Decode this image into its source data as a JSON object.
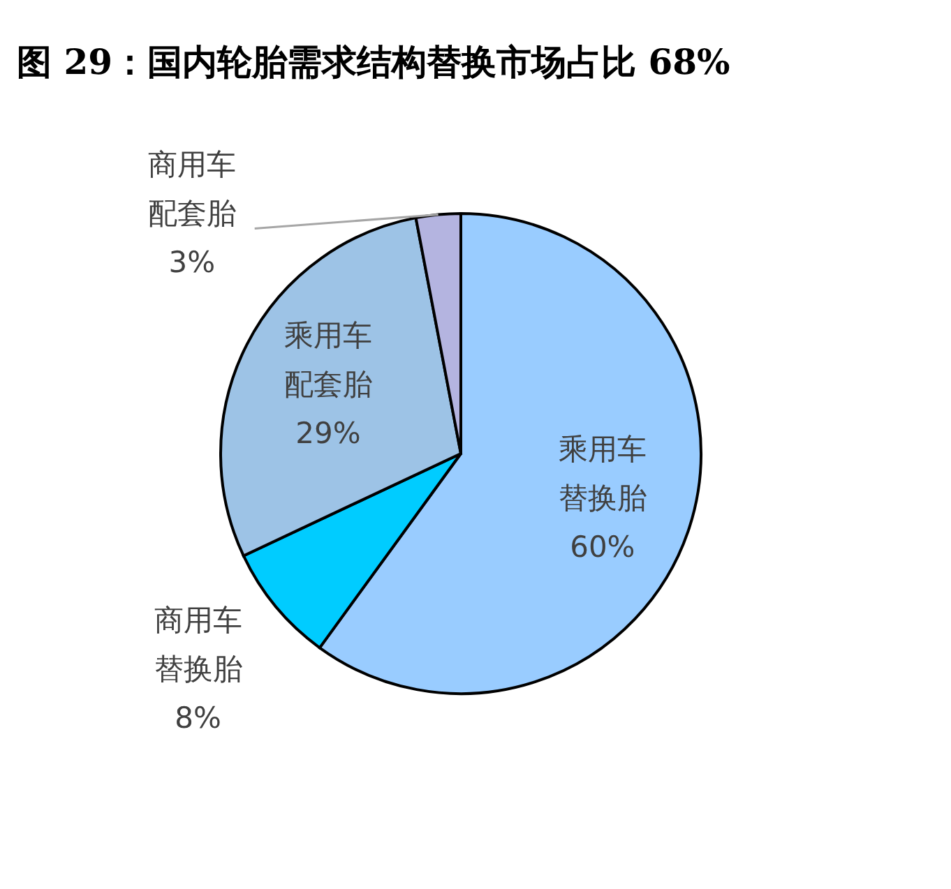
{
  "chart_data": {
    "type": "pie",
    "title": "图 29：国内轮胎需求结构替换市场占比 68%",
    "categories": [
      "乘用车替换胎",
      "商用车替换胎",
      "乘用车配套胎",
      "商用车配套胎"
    ],
    "values": [
      60,
      8,
      29,
      3
    ],
    "colors": [
      "#99ccff",
      "#00ccff",
      "#9dc3e6",
      "#b4b4e0"
    ],
    "value_labels": [
      "60%",
      "8%",
      "29%",
      "3%"
    ]
  }
}
